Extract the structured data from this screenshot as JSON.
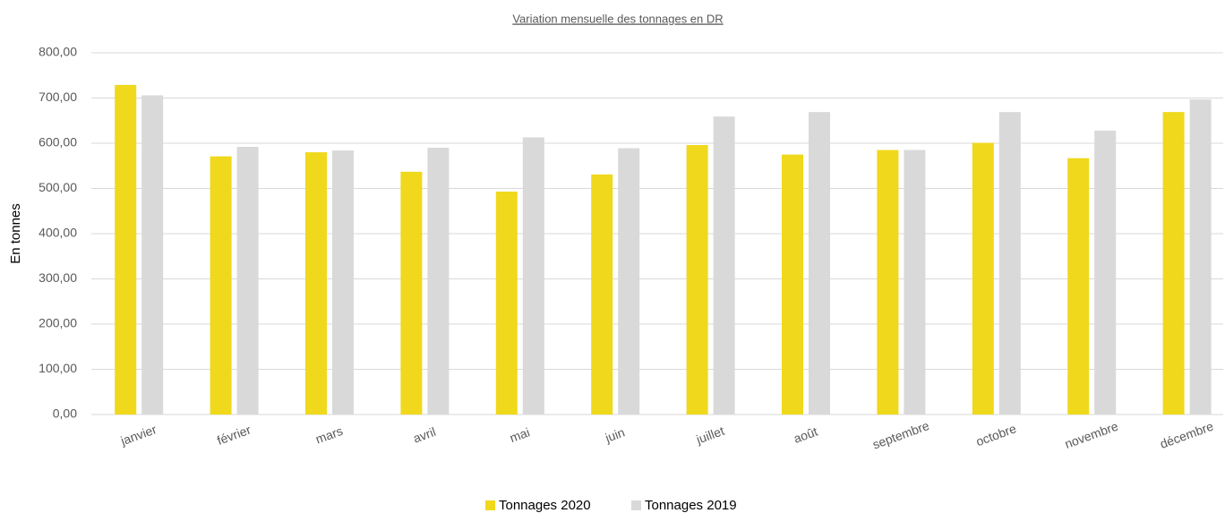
{
  "chart_data": {
    "type": "bar",
    "title": "Variation mensuelle des tonnages en DR",
    "y_label": "En tonnes",
    "categories": [
      "janvier",
      "février",
      "mars",
      "avril",
      "mai",
      "juin",
      "juillet",
      "août",
      "septembre",
      "octobre",
      "novembre",
      "décembre"
    ],
    "series": [
      {
        "name": "Tonnages 2020",
        "color": "#f0d81c",
        "values": [
          729,
          571,
          580,
          537,
          493,
          531,
          596,
          575,
          585,
          601,
          567,
          669
        ]
      },
      {
        "name": "Tonnages 2019",
        "color": "#d9d9d9",
        "values": [
          706,
          592,
          584,
          590,
          613,
          589,
          659,
          669,
          585,
          669,
          628,
          697
        ]
      }
    ],
    "ylim": [
      0,
      800
    ],
    "yticks": [
      {
        "value": 0,
        "label": "0,00"
      },
      {
        "value": 100,
        "label": "100,00"
      },
      {
        "value": 200,
        "label": "200,00"
      },
      {
        "value": 300,
        "label": "300,00"
      },
      {
        "value": 400,
        "label": "400,00"
      },
      {
        "value": 500,
        "label": "500,00"
      },
      {
        "value": 600,
        "label": "600,00"
      },
      {
        "value": 700,
        "label": "700,00"
      },
      {
        "value": 800,
        "label": "800,00"
      }
    ],
    "grid": true,
    "legend": "bottom"
  }
}
